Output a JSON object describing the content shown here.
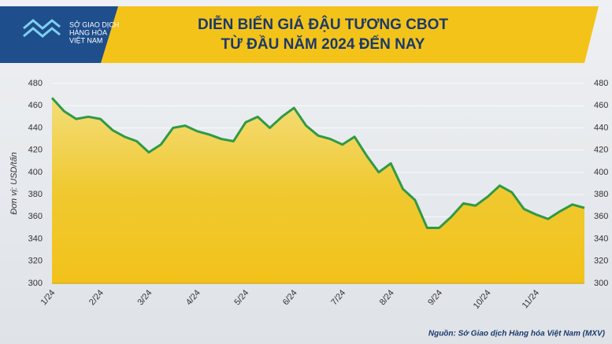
{
  "chart_data": {
    "type": "area-line",
    "logo": [
      "SỞ GIAO DỊCH",
      "HÀNG HÓA",
      "VIỆT NAM"
    ],
    "title": "DIỄN BIẾN GIÁ ĐẬU TƯƠNG CBOT",
    "subtitle": "TỪ ĐẦU NĂM 2024 ĐẾN NAY",
    "ylabel": "Đơn vị: USD/tấn",
    "source": "Nguồn: Sở Giao dịch Hàng hóa Việt Nam (MXV)",
    "categories": [
      "1/24",
      null,
      null,
      null,
      "2/24",
      null,
      null,
      null,
      "3/24",
      null,
      null,
      null,
      "4/24",
      null,
      null,
      null,
      "5/24",
      null,
      null,
      null,
      "6/24",
      null,
      null,
      null,
      "7/24",
      null,
      null,
      null,
      "8/24",
      null,
      null,
      null,
      "9/24",
      null,
      null,
      null,
      "10/24",
      null,
      null,
      null,
      "11/24",
      null,
      null,
      null,
      null
    ],
    "values": [
      467,
      455,
      448,
      450,
      448,
      438,
      432,
      428,
      418,
      425,
      440,
      442,
      437,
      434,
      430,
      428,
      445,
      450,
      440,
      450,
      458,
      442,
      433,
      430,
      425,
      432,
      415,
      400,
      408,
      385,
      375,
      350,
      350,
      360,
      372,
      370,
      378,
      388,
      382,
      367,
      362,
      358,
      365,
      371,
      368
    ],
    "color": "#2f9a45",
    "ylim": [
      300,
      480
    ],
    "yticks": [
      300,
      320,
      340,
      360,
      380,
      400,
      420,
      440,
      460,
      480
    ],
    "y2lim": [
      300,
      480
    ],
    "y2ticks": [
      300,
      320,
      340,
      360,
      380,
      400,
      420,
      440,
      460,
      480
    ],
    "grid": true
  }
}
